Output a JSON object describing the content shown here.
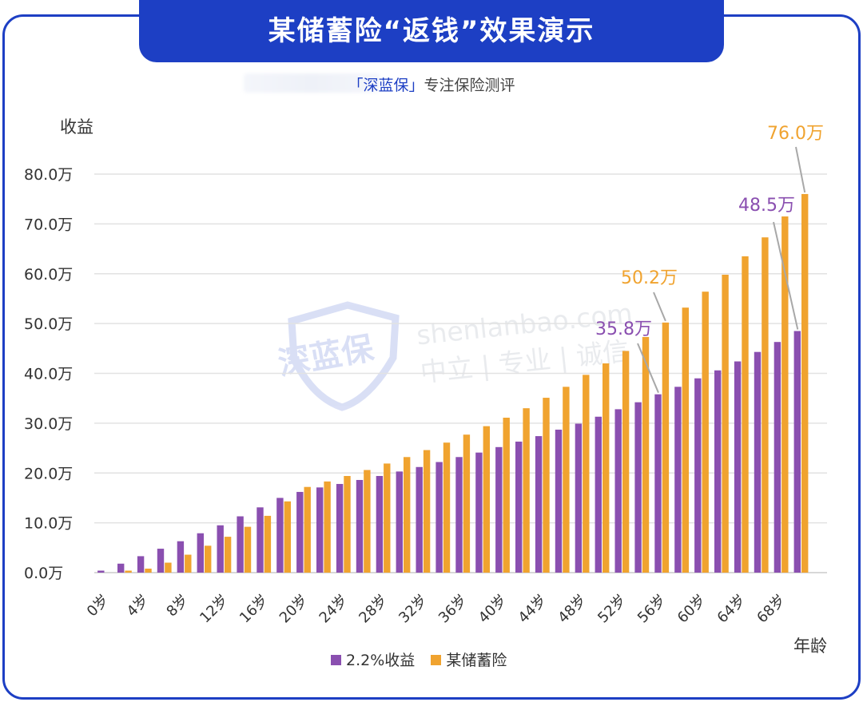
{
  "header": {
    "title": "某储蓄险“返钱”效果演示",
    "subtitle_brand": "「深蓝保」",
    "subtitle_tail": "专注保险测评"
  },
  "watermark": {
    "logo": "深蓝保",
    "site": "shenlanbao.com",
    "slogan": "中立 | 专业 | 诚信"
  },
  "colors": {
    "primary": "#1d3fc4",
    "series_a": "#8a4fb0",
    "series_b": "#f0a32f"
  },
  "chart_data": {
    "type": "bar",
    "ylabel": "收益",
    "xlabel": "年龄",
    "ylim": [
      0,
      80
    ],
    "yticks": [
      "0.0万",
      "10.0万",
      "20.0万",
      "30.0万",
      "40.0万",
      "50.0万",
      "60.0万",
      "70.0万",
      "80.0万"
    ],
    "categories": [
      "0岁",
      "2岁",
      "4岁",
      "6岁",
      "8岁",
      "10岁",
      "12岁",
      "14岁",
      "16岁",
      "18岁",
      "20岁",
      "22岁",
      "24岁",
      "26岁",
      "28岁",
      "30岁",
      "32岁",
      "34岁",
      "36岁",
      "38岁",
      "40岁",
      "42岁",
      "44岁",
      "46岁",
      "48岁",
      "50岁",
      "52岁",
      "54岁",
      "56岁",
      "58岁",
      "60岁",
      "62岁",
      "64岁",
      "66岁",
      "68岁",
      "70岁"
    ],
    "xtick_labels": [
      "0岁",
      "4岁",
      "8岁",
      "12岁",
      "16岁",
      "20岁",
      "24岁",
      "28岁",
      "32岁",
      "36岁",
      "40岁",
      "44岁",
      "48岁",
      "52岁",
      "56岁",
      "60岁",
      "64岁",
      "68岁"
    ],
    "series": [
      {
        "name": "2.2%收益",
        "values": [
          0.4,
          1.8,
          3.3,
          4.8,
          6.3,
          7.9,
          9.5,
          11.3,
          13.1,
          15.0,
          16.2,
          17.1,
          17.8,
          18.6,
          19.4,
          20.3,
          21.2,
          22.2,
          23.2,
          24.1,
          25.2,
          26.3,
          27.4,
          28.7,
          29.9,
          31.3,
          32.8,
          34.2,
          35.8,
          37.3,
          39.0,
          40.6,
          42.4,
          44.3,
          46.3,
          48.5
        ]
      },
      {
        "name": "某储蓄险",
        "values": [
          0,
          0.4,
          0.8,
          2.0,
          3.6,
          5.4,
          7.2,
          9.2,
          11.4,
          14.3,
          17.2,
          18.3,
          19.4,
          20.6,
          21.9,
          23.2,
          24.6,
          26.1,
          27.7,
          29.4,
          31.1,
          33.0,
          35.1,
          37.3,
          39.7,
          42.0,
          44.5,
          47.3,
          50.2,
          53.2,
          56.4,
          59.8,
          63.5,
          67.3,
          71.5,
          76.0
        ]
      }
    ],
    "annotations": [
      {
        "text": "35.8万",
        "series": "2.2%收益",
        "category": "56岁",
        "value": 35.8
      },
      {
        "text": "50.2万",
        "series": "某储蓄险",
        "category": "56岁",
        "value": 50.2
      },
      {
        "text": "48.5万",
        "series": "2.2%收益",
        "category": "70岁",
        "value": 48.5
      },
      {
        "text": "76.0万",
        "series": "某储蓄险",
        "category": "70岁",
        "value": 76.0
      }
    ],
    "legend": "bottom",
    "grid": true
  }
}
